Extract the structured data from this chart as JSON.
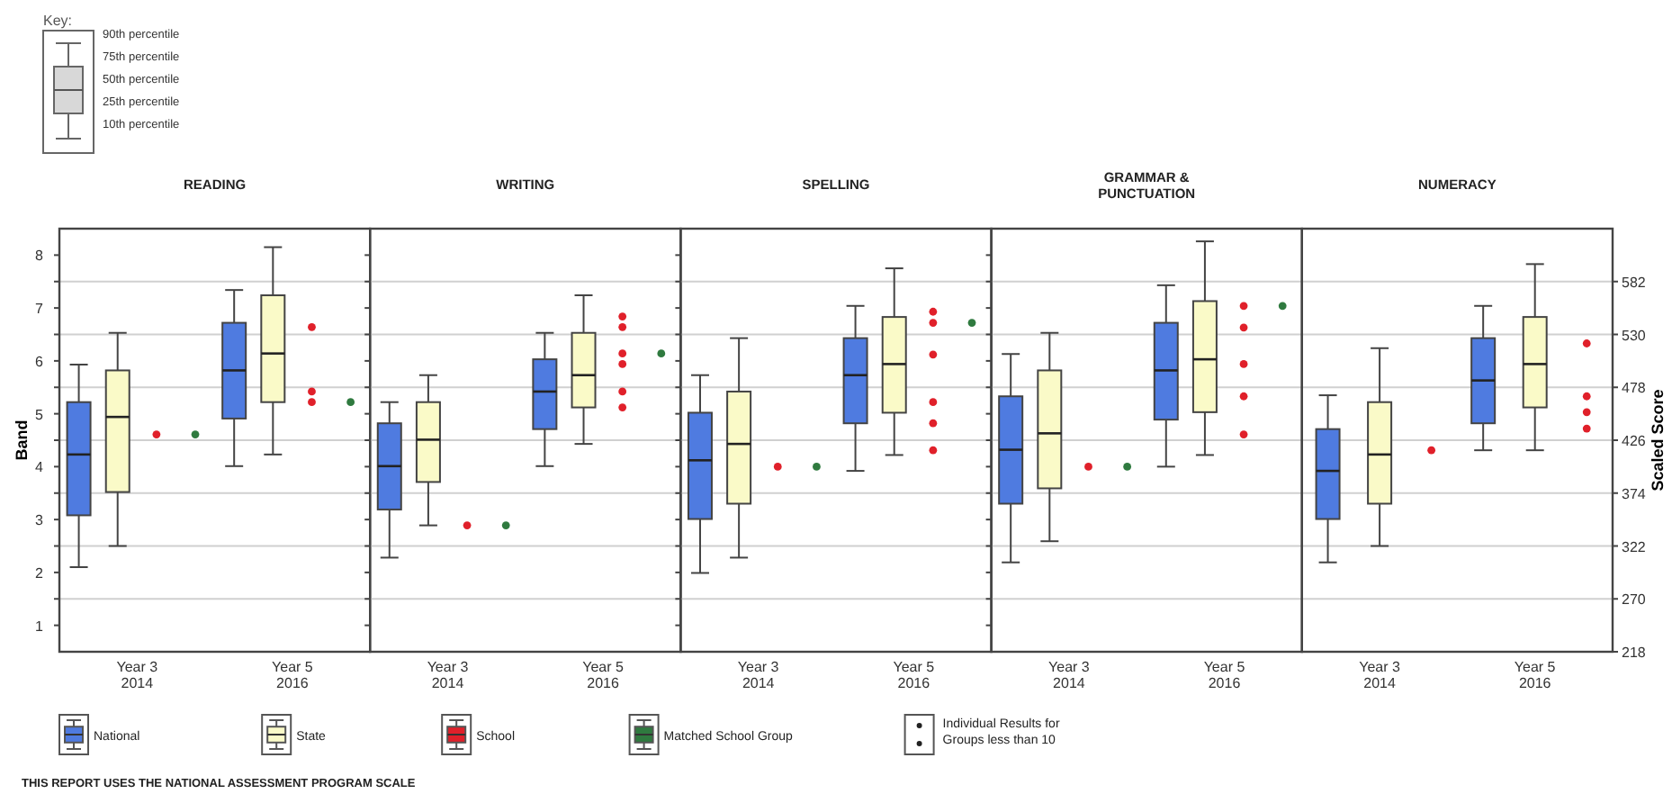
{
  "chart_data": [
    {
      "type": "box",
      "title": "READING",
      "ylabel": "Band",
      "categories": [
        "Year 3\n2014",
        "Year 5\n2016"
      ],
      "series": [
        {
          "name": "National",
          "color": "#4f7be0",
          "boxes": [
            {
              "low": 2.1,
              "q1": 3.08,
              "median": 4.23,
              "q3": 5.22,
              "high": 5.93
            },
            {
              "low": 4.01,
              "q1": 4.91,
              "median": 5.82,
              "q3": 6.72,
              "high": 7.34
            }
          ]
        },
        {
          "name": "State",
          "color": "#fafac8",
          "boxes": [
            {
              "low": 2.5,
              "q1": 3.52,
              "median": 4.94,
              "q3": 5.82,
              "high": 6.53
            },
            {
              "low": 4.23,
              "q1": 5.22,
              "median": 6.14,
              "q3": 7.24,
              "high": 8.15
            }
          ]
        },
        {
          "name": "School",
          "type": "scatter",
          "color": "#e0202a",
          "x": [
            "Year 3\n2014",
            "Year 5\n2016",
            "Year 5\n2016",
            "Year 5\n2016"
          ],
          "values": [
            4.61,
            6.64,
            5.42,
            5.22
          ]
        },
        {
          "name": "Matched School Group",
          "type": "scatter",
          "color": "#2f7a3f",
          "x": [
            "Year 3\n2014",
            "Year 5\n2016"
          ],
          "values": [
            4.61,
            5.22
          ]
        }
      ],
      "ylim": [
        0.5,
        8.5
      ],
      "yticks": [
        1,
        {
          "value": 1.5,
          "label": null
        },
        2,
        {
          "value": 2.5,
          "label": null
        },
        3,
        {
          "value": 3.5,
          "label": null
        },
        4,
        {
          "value": 4.5,
          "label": null
        },
        5,
        {
          "value": 5.5,
          "label": null
        },
        6,
        {
          "value": 6.5,
          "label": null
        },
        7,
        {
          "value": 7.5,
          "label": null
        },
        8
      ],
      "grid": "y",
      "legend": "bottom",
      "annotations": [
        "Key:",
        "90th percentile",
        "75th percentile",
        "50th percentile",
        "25th percentile",
        "10th percentile",
        "Individual Results for\nGroups less than 10",
        "THIS REPORT USES THE NATIONAL ASSESSMENT PROGRAM SCALE"
      ]
    },
    {
      "type": "box",
      "title": "WRITING",
      "categories": [
        "Year 3\n2014",
        "Year 5\n2016"
      ],
      "series": [
        {
          "color": "#4f7be0",
          "boxes": [
            {
              "low": 2.28,
              "q1": 3.19,
              "median": 4.01,
              "q3": 4.82,
              "high": 5.22
            },
            {
              "low": 4.01,
              "q1": 4.71,
              "median": 5.42,
              "q3": 6.03,
              "high": 6.53
            }
          ]
        },
        {
          "color": "#fafac8",
          "boxes": [
            {
              "low": 2.89,
              "q1": 3.71,
              "median": 4.51,
              "q3": 5.22,
              "high": 5.73
            },
            {
              "low": 4.43,
              "q1": 5.12,
              "median": 5.73,
              "q3": 6.53,
              "high": 7.24
            }
          ]
        },
        {
          "type": "scatter",
          "color": "#e0202a",
          "x": [
            "Year 3\n2014",
            "Year 5\n2016",
            "Year 5\n2016",
            "Year 5\n2016",
            "Year 5\n2016",
            "Year 5\n2016",
            "Year 5\n2016"
          ],
          "values": [
            2.89,
            6.84,
            6.64,
            6.14,
            5.94,
            5.42,
            5.12
          ]
        },
        {
          "type": "scatter",
          "color": "#2f7a3f",
          "x": [
            "Year 3\n2014",
            "Year 5\n2016"
          ],
          "values": [
            2.89,
            6.14
          ]
        }
      ],
      "ylim": [
        0.5,
        8.5
      ],
      "yticks": [
        1,
        {
          "value": 1.5,
          "label": null
        },
        2,
        {
          "value": 2.5,
          "label": null
        },
        3,
        {
          "value": 3.5,
          "label": null
        },
        4,
        {
          "value": 4.5,
          "label": null
        },
        5,
        {
          "value": 5.5,
          "label": null
        },
        6,
        {
          "value": 6.5,
          "label": null
        },
        7,
        {
          "value": 7.5,
          "label": null
        },
        8
      ],
      "grid": "y",
      "tick_labels": "x"
    },
    {
      "type": "box",
      "title": "SPELLING",
      "categories": [
        "Year 3\n2014",
        "Year 5\n2016"
      ],
      "series": [
        {
          "color": "#4f7be0",
          "boxes": [
            {
              "low": 1.99,
              "q1": 3.01,
              "median": 4.12,
              "q3": 5.02,
              "high": 5.73
            },
            {
              "low": 3.92,
              "q1": 4.82,
              "median": 5.73,
              "q3": 6.43,
              "high": 7.04
            }
          ]
        },
        {
          "color": "#fafac8",
          "boxes": [
            {
              "low": 2.28,
              "q1": 3.3,
              "median": 4.43,
              "q3": 5.42,
              "high": 6.43
            },
            {
              "low": 4.22,
              "q1": 5.02,
              "median": 5.94,
              "q3": 6.83,
              "high": 7.75
            }
          ]
        },
        {
          "type": "scatter",
          "color": "#e0202a",
          "x": [
            "Year 3\n2014",
            "Year 5\n2016",
            "Year 5\n2016",
            "Year 5\n2016",
            "Year 5\n2016",
            "Year 5\n2016",
            "Year 5\n2016"
          ],
          "values": [
            4.0,
            6.93,
            6.72,
            6.12,
            5.22,
            4.82,
            4.31
          ]
        },
        {
          "type": "scatter",
          "color": "#2f7a3f",
          "x": [
            "Year 3\n2014",
            "Year 5\n2016"
          ],
          "values": [
            4.0,
            6.72
          ]
        }
      ],
      "ylim": [
        0.5,
        8.5
      ],
      "yticks": [
        1,
        {
          "value": 1.5,
          "label": null
        },
        2,
        {
          "value": 2.5,
          "label": null
        },
        3,
        {
          "value": 3.5,
          "label": null
        },
        4,
        {
          "value": 4.5,
          "label": null
        },
        5,
        {
          "value": 5.5,
          "label": null
        },
        6,
        {
          "value": 6.5,
          "label": null
        },
        7,
        {
          "value": 7.5,
          "label": null
        },
        8
      ],
      "grid": "y",
      "tick_labels": "x"
    },
    {
      "type": "box",
      "title": "GRAMMAR &\nPUNCTUATION",
      "categories": [
        "Year 3\n2014",
        "Year 5\n2016"
      ],
      "series": [
        {
          "color": "#4f7be0",
          "boxes": [
            {
              "low": 2.19,
              "q1": 3.3,
              "median": 4.32,
              "q3": 5.33,
              "high": 6.13
            },
            {
              "low": 4.0,
              "q1": 4.89,
              "median": 5.82,
              "q3": 6.72,
              "high": 7.43
            }
          ]
        },
        {
          "color": "#fafac8",
          "boxes": [
            {
              "low": 2.59,
              "q1": 3.59,
              "median": 4.63,
              "q3": 5.82,
              "high": 6.53
            },
            {
              "low": 4.22,
              "q1": 5.03,
              "median": 6.03,
              "q3": 7.13,
              "high": 8.26
            }
          ]
        },
        {
          "type": "scatter",
          "color": "#e0202a",
          "x": [
            "Year 3\n2014",
            "Year 5\n2016",
            "Year 5\n2016",
            "Year 5\n2016",
            "Year 5\n2016",
            "Year 5\n2016"
          ],
          "values": [
            4.0,
            7.04,
            6.63,
            5.94,
            5.33,
            4.61
          ]
        },
        {
          "type": "scatter",
          "color": "#2f7a3f",
          "x": [
            "Year 3\n2014",
            "Year 5\n2016"
          ],
          "values": [
            4.0,
            7.04
          ]
        }
      ],
      "ylim": [
        0.5,
        8.5
      ],
      "yticks": [
        1,
        {
          "value": 1.5,
          "label": null
        },
        2,
        {
          "value": 2.5,
          "label": null
        },
        3,
        {
          "value": 3.5,
          "label": null
        },
        4,
        {
          "value": 4.5,
          "label": null
        },
        5,
        {
          "value": 5.5,
          "label": null
        },
        6,
        {
          "value": 6.5,
          "label": null
        },
        7,
        {
          "value": 7.5,
          "label": null
        },
        8
      ],
      "grid": "y",
      "tick_labels": "x"
    },
    {
      "type": "box",
      "title": "NUMERACY",
      "y2label": "Scaled Score",
      "categories": [
        "Year 3\n2014",
        "Year 5\n2016"
      ],
      "series": [
        {
          "color": "#4f7be0",
          "boxes": [
            {
              "low": 2.19,
              "q1": 3.01,
              "median": 3.92,
              "q3": 4.71,
              "high": 5.35
            },
            {
              "low": 4.31,
              "q1": 4.82,
              "median": 5.63,
              "q3": 6.43,
              "high": 7.04
            }
          ]
        },
        {
          "color": "#fafac8",
          "boxes": [
            {
              "low": 2.5,
              "q1": 3.3,
              "median": 4.23,
              "q3": 5.22,
              "high": 6.24
            },
            {
              "low": 4.31,
              "q1": 5.12,
              "median": 5.94,
              "q3": 6.83,
              "high": 7.83
            }
          ]
        },
        {
          "type": "scatter",
          "color": "#e0202a",
          "x": [
            "Year 3\n2014",
            "Year 5\n2016",
            "Year 5\n2016",
            "Year 5\n2016",
            "Year 5\n2016"
          ],
          "values": [
            4.31,
            6.33,
            5.33,
            5.03,
            4.72
          ]
        }
      ],
      "ylim": [
        0.5,
        8.5
      ],
      "y2lim": [
        218,
        634
      ],
      "y2ticks": [
        218,
        270,
        322,
        374,
        426,
        478,
        530,
        582
      ],
      "grid": "y"
    }
  ]
}
